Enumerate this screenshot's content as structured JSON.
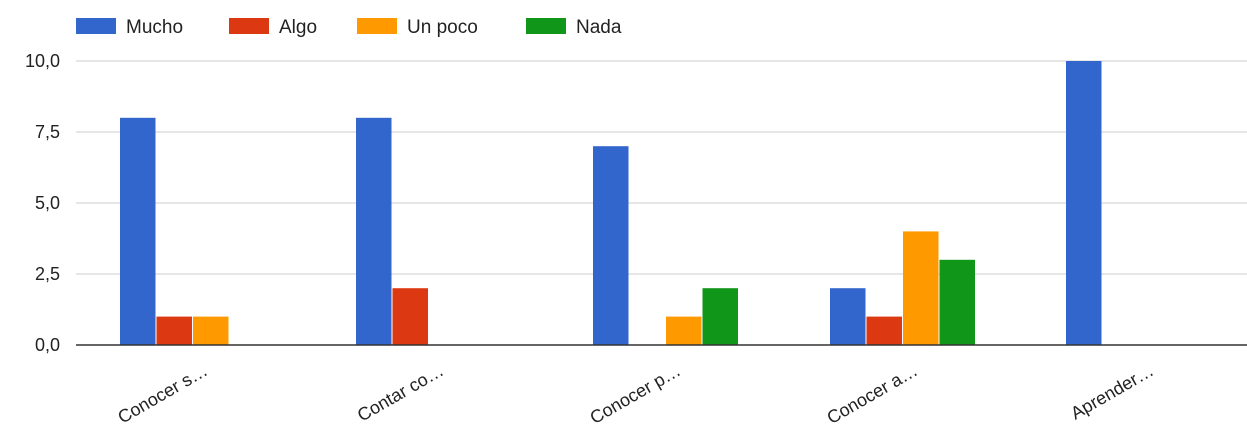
{
  "chart_data": {
    "type": "bar",
    "categories": [
      "Conocer s…",
      "Contar co…",
      "Conocer p…",
      "Conocer a…",
      "Aprender…"
    ],
    "series": [
      {
        "name": "Mucho",
        "color": "#3366cc",
        "values": [
          8,
          8,
          7,
          2,
          10
        ]
      },
      {
        "name": "Algo",
        "color": "#dc3912",
        "values": [
          1,
          2,
          0,
          1,
          0
        ]
      },
      {
        "name": "Un poco",
        "color": "#ff9900",
        "values": [
          1,
          0,
          1,
          4,
          0
        ]
      },
      {
        "name": "Nada",
        "color": "#109618",
        "values": [
          0,
          0,
          2,
          3,
          0
        ]
      }
    ],
    "y_ticks": [
      "0,0",
      "2,5",
      "5,0",
      "7,5",
      "10,0"
    ],
    "ylim": [
      0,
      10
    ],
    "grid": true,
    "legend_position": "top-left"
  }
}
